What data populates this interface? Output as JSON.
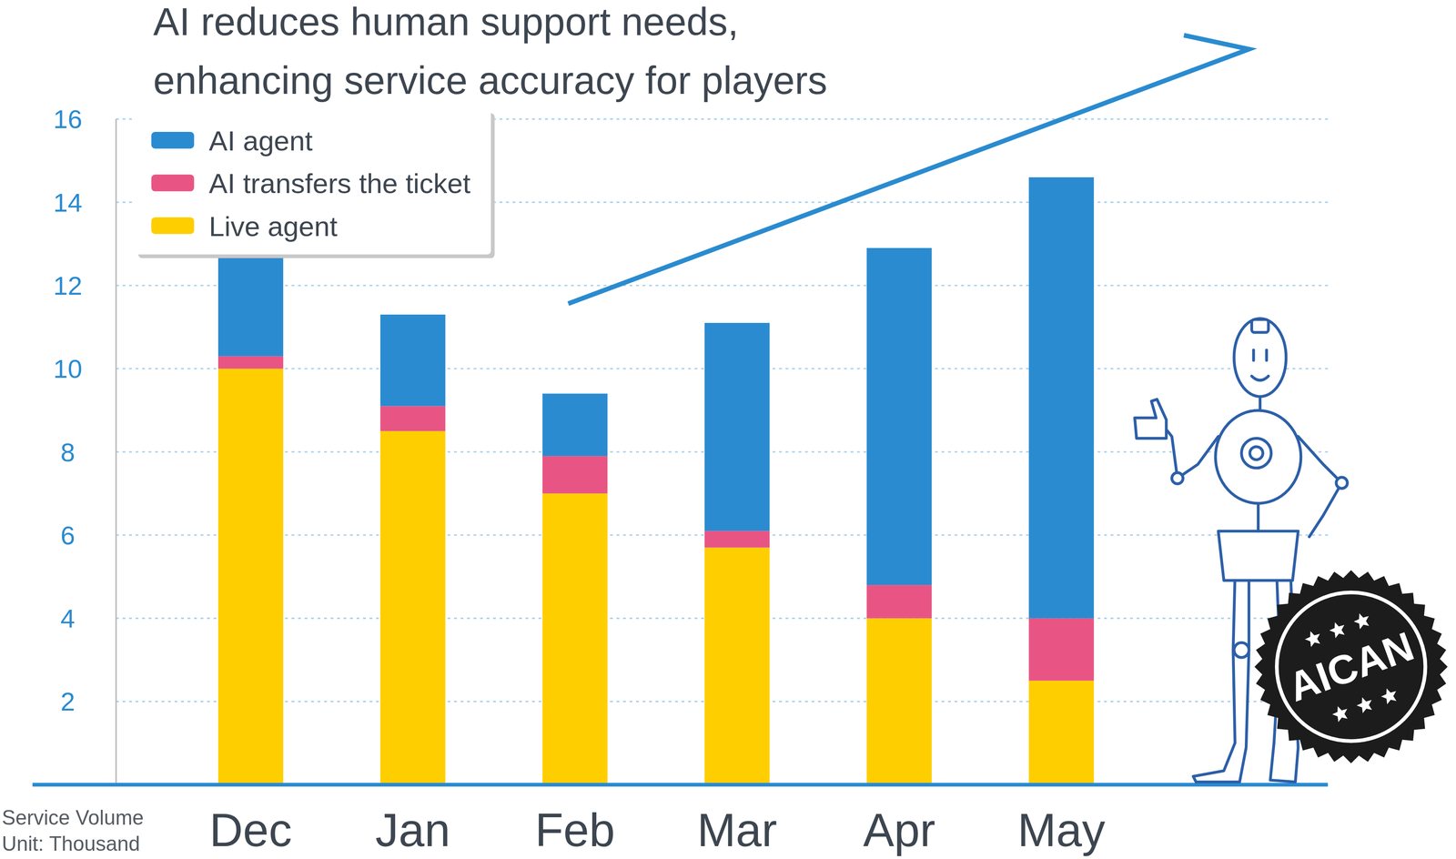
{
  "chart_data": {
    "type": "bar",
    "stacked": true,
    "title": "AI reduces human support needs, enhancing service accuracy for players",
    "ylabel": "Service Volume Unit: Thousand",
    "categories": [
      "Dec",
      "Jan",
      "Feb",
      "Mar",
      "Apr",
      "May"
    ],
    "series": [
      {
        "name": "Live agent",
        "color": "#FFCE00",
        "values": [
          10.0,
          8.5,
          7.0,
          5.7,
          4.0,
          2.5
        ]
      },
      {
        "name": "AI transfers the ticket",
        "color": "#E85584",
        "values": [
          0.3,
          0.6,
          0.9,
          0.4,
          0.8,
          1.5
        ]
      },
      {
        "name": "AI agent",
        "color": "#2A8BD0",
        "values": [
          2.4,
          2.2,
          1.5,
          5.0,
          8.1,
          10.6
        ]
      }
    ],
    "ylim": [
      0,
      16
    ],
    "yticks": [
      2,
      4,
      6,
      8,
      10,
      12,
      14,
      16
    ],
    "grid": true,
    "legend": "upper left",
    "annotations": [
      "AICAN"
    ]
  }
}
